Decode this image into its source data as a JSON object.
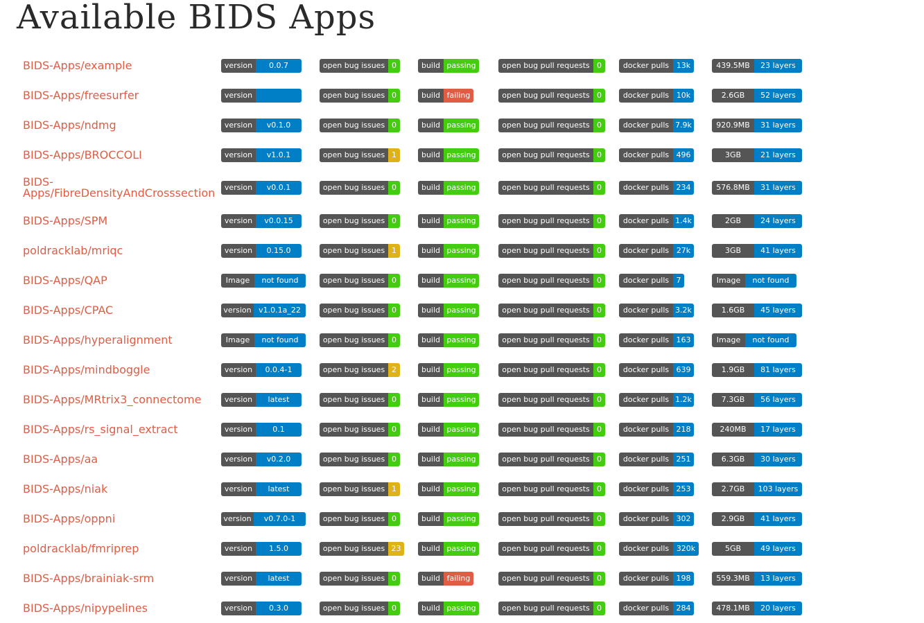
{
  "page": {
    "title": "Available BIDS Apps"
  },
  "colors": {
    "link": "#e05d44",
    "label_bg": "#555555",
    "blue": "#007ec6",
    "green": "#4c1",
    "yellow": "#dfb317",
    "red": "#e05d44"
  },
  "badge_labels": {
    "version": "version",
    "image": "Image",
    "issues": "open bug issues",
    "build": "build",
    "prs": "open bug pull requests",
    "pulls": "docker pulls"
  },
  "apps": [
    {
      "name": "BIDS-Apps/example",
      "version": "0.0.7",
      "issues": "0",
      "build": "passing",
      "prs": "0",
      "pulls": "13k",
      "size": "439.5MB",
      "layers": "23 layers"
    },
    {
      "name": "BIDS-Apps/freesurfer",
      "version": "",
      "issues": "0",
      "build": "failing",
      "prs": "0",
      "pulls": "10k",
      "size": "2.6GB",
      "layers": "52 layers"
    },
    {
      "name": "BIDS-Apps/ndmg",
      "version": "v0.1.0",
      "issues": "0",
      "build": "passing",
      "prs": "0",
      "pulls": "7.9k",
      "size": "920.9MB",
      "layers": "31 layers"
    },
    {
      "name": "BIDS-Apps/BROCCOLI",
      "version": "v1.0.1",
      "issues": "1",
      "build": "passing",
      "prs": "0",
      "pulls": "496",
      "size": "3GB",
      "layers": "21 layers"
    },
    {
      "name": "BIDS-Apps/FibreDensityAndCrosssection",
      "version": "v0.0.1",
      "issues": "0",
      "build": "passing",
      "prs": "0",
      "pulls": "234",
      "size": "576.8MB",
      "layers": "31 layers"
    },
    {
      "name": "BIDS-Apps/SPM",
      "version": "v0.0.15",
      "issues": "0",
      "build": "passing",
      "prs": "0",
      "pulls": "1.4k",
      "size": "2GB",
      "layers": "24 layers"
    },
    {
      "name": "poldracklab/mriqc",
      "version": "0.15.0",
      "issues": "1",
      "build": "passing",
      "prs": "0",
      "pulls": "27k",
      "size": "3GB",
      "layers": "41 layers"
    },
    {
      "name": "BIDS-Apps/QAP",
      "version": "not found",
      "issues": "0",
      "build": "passing",
      "prs": "0",
      "pulls": "7",
      "size": "Image",
      "layers": "not found"
    },
    {
      "name": "BIDS-Apps/CPAC",
      "version": "v1.0.1a_22",
      "issues": "0",
      "build": "passing",
      "prs": "0",
      "pulls": "3.2k",
      "size": "1.6GB",
      "layers": "45 layers"
    },
    {
      "name": "BIDS-Apps/hyperalignment",
      "version": "not found",
      "issues": "0",
      "build": "passing",
      "prs": "0",
      "pulls": "163",
      "size": "Image",
      "layers": "not found"
    },
    {
      "name": "BIDS-Apps/mindboggle",
      "version": "0.0.4-1",
      "issues": "2",
      "build": "passing",
      "prs": "0",
      "pulls": "639",
      "size": "1.9GB",
      "layers": "81 layers"
    },
    {
      "name": "BIDS-Apps/MRtrix3_connectome",
      "version": "latest",
      "issues": "0",
      "build": "passing",
      "prs": "0",
      "pulls": "1.2k",
      "size": "7.3GB",
      "layers": "56 layers"
    },
    {
      "name": "BIDS-Apps/rs_signal_extract",
      "version": "0.1",
      "issues": "0",
      "build": "passing",
      "prs": "0",
      "pulls": "218",
      "size": "240MB",
      "layers": "17 layers"
    },
    {
      "name": "BIDS-Apps/aa",
      "version": "v0.2.0",
      "issues": "0",
      "build": "passing",
      "prs": "0",
      "pulls": "251",
      "size": "6.3GB",
      "layers": "30 layers"
    },
    {
      "name": "BIDS-Apps/niak",
      "version": "latest",
      "issues": "1",
      "build": "passing",
      "prs": "0",
      "pulls": "253",
      "size": "2.7GB",
      "layers": "103 layers"
    },
    {
      "name": "BIDS-Apps/oppni",
      "version": "v0.7.0-1",
      "issues": "0",
      "build": "passing",
      "prs": "0",
      "pulls": "302",
      "size": "2.9GB",
      "layers": "41 layers"
    },
    {
      "name": "poldracklab/fmriprep",
      "version": "1.5.0",
      "issues": "23",
      "build": "passing",
      "prs": "0",
      "pulls": "320k",
      "size": "5GB",
      "layers": "49 layers"
    },
    {
      "name": "BIDS-Apps/brainiak-srm",
      "version": "latest",
      "issues": "0",
      "build": "failing",
      "prs": "0",
      "pulls": "198",
      "size": "559.3MB",
      "layers": "13 layers"
    },
    {
      "name": "BIDS-Apps/nipypelines",
      "version": "0.3.0",
      "issues": "0",
      "build": "passing",
      "prs": "0",
      "pulls": "284",
      "size": "478.1MB",
      "layers": "20 layers"
    }
  ]
}
